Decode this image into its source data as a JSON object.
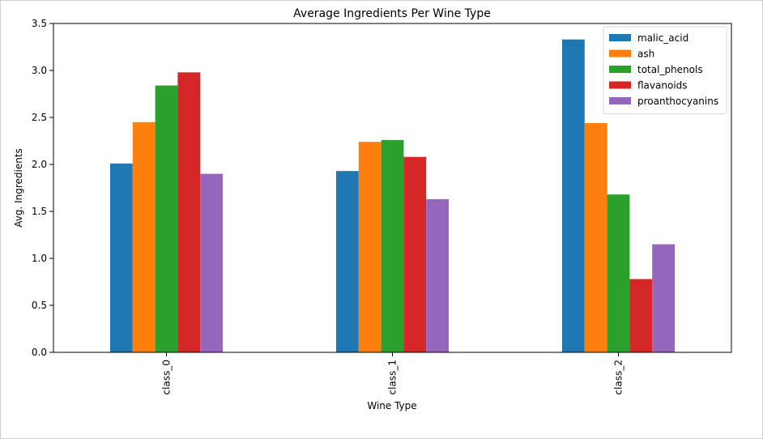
{
  "chart_data": {
    "type": "bar",
    "title": "Average Ingredients Per Wine Type",
    "xlabel": "Wine Type",
    "ylabel": "Avg. Ingredients",
    "categories": [
      "class_0",
      "class_1",
      "class_2"
    ],
    "ylim": [
      0,
      3.5
    ],
    "yticks": [
      "0.0",
      "0.5",
      "1.0",
      "1.5",
      "2.0",
      "2.5",
      "3.0",
      "3.5"
    ],
    "legend_position": "top-right",
    "grid": false,
    "series": [
      {
        "name": "malic_acid",
        "color": "#1f77b4",
        "values": [
          2.01,
          1.93,
          3.33
        ]
      },
      {
        "name": "ash",
        "color": "#ff7f0e",
        "values": [
          2.45,
          2.24,
          2.44
        ]
      },
      {
        "name": "total_phenols",
        "color": "#2ca02c",
        "values": [
          2.84,
          2.26,
          1.68
        ]
      },
      {
        "name": "flavanoids",
        "color": "#d62728",
        "values": [
          2.98,
          2.08,
          0.78
        ]
      },
      {
        "name": "proanthocyanins",
        "color": "#9467bd",
        "values": [
          1.9,
          1.63,
          1.15
        ]
      }
    ]
  }
}
